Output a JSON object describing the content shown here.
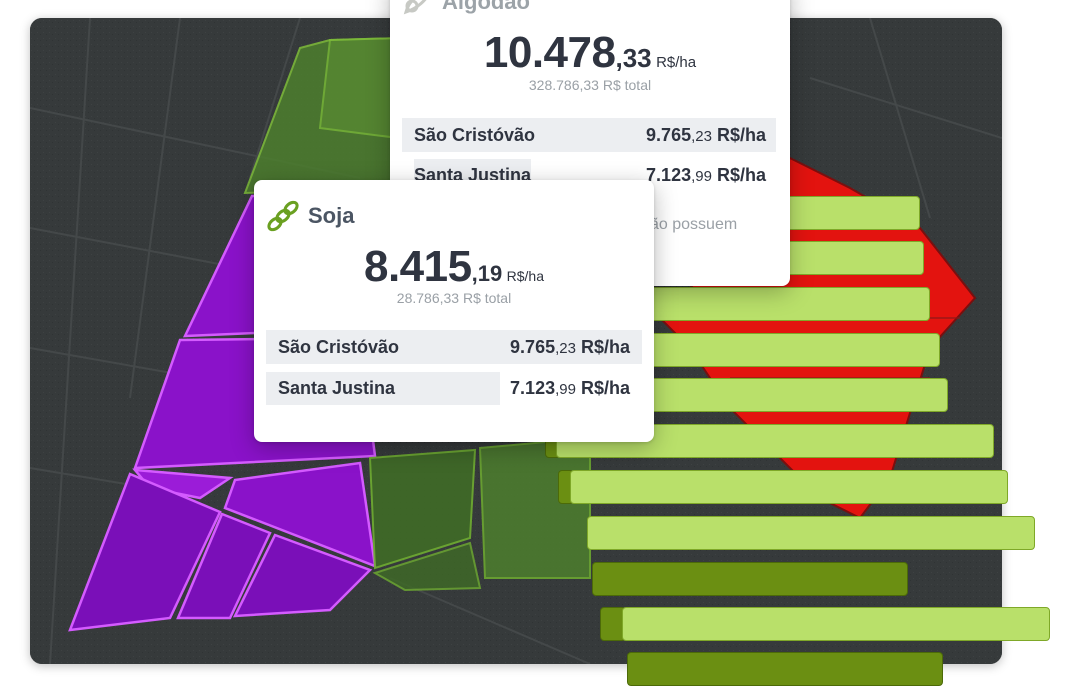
{
  "cards": {
    "algodao": {
      "name": "Algodão",
      "value_int": "10.478",
      "value_dec": ",33",
      "unit": "R$/ha",
      "total": "328.786,33 R$ total",
      "rows": [
        {
          "name": "São Cristóvão",
          "value_int": "9.765",
          "value_dec": ",23",
          "unit": "R$/ha"
        },
        {
          "name": "Santa Justina",
          "value_int": "7.123",
          "value_dec": ",99",
          "unit": "R$/ha"
        }
      ],
      "footnote": "ão possuem"
    },
    "soja": {
      "name": "Soja",
      "value_int": "8.415",
      "value_dec": ",19",
      "unit": "R$/ha",
      "total": "28.786,33 R$ total",
      "rows": [
        {
          "name": "São Cristóvão",
          "value_int": "9.765",
          "value_dec": ",23",
          "unit": "R$/ha"
        },
        {
          "name": "Santa Justina",
          "value_int": "7.123",
          "value_dec": ",99",
          "unit": "R$/ha"
        }
      ]
    }
  },
  "colors": {
    "soja_field": "#8a12c9",
    "soja_outline": "#d45bff",
    "green_field": "#4d7f2e",
    "red_field": "#e3130f",
    "bar_light": "#b9e06a",
    "bar_dark": "#6b8f12",
    "card_row_bg": "#eceef1",
    "soja_icon": "#6aa021"
  },
  "icons": [
    "soja-leaf-icon",
    "algodao-leaf-icon"
  ]
}
